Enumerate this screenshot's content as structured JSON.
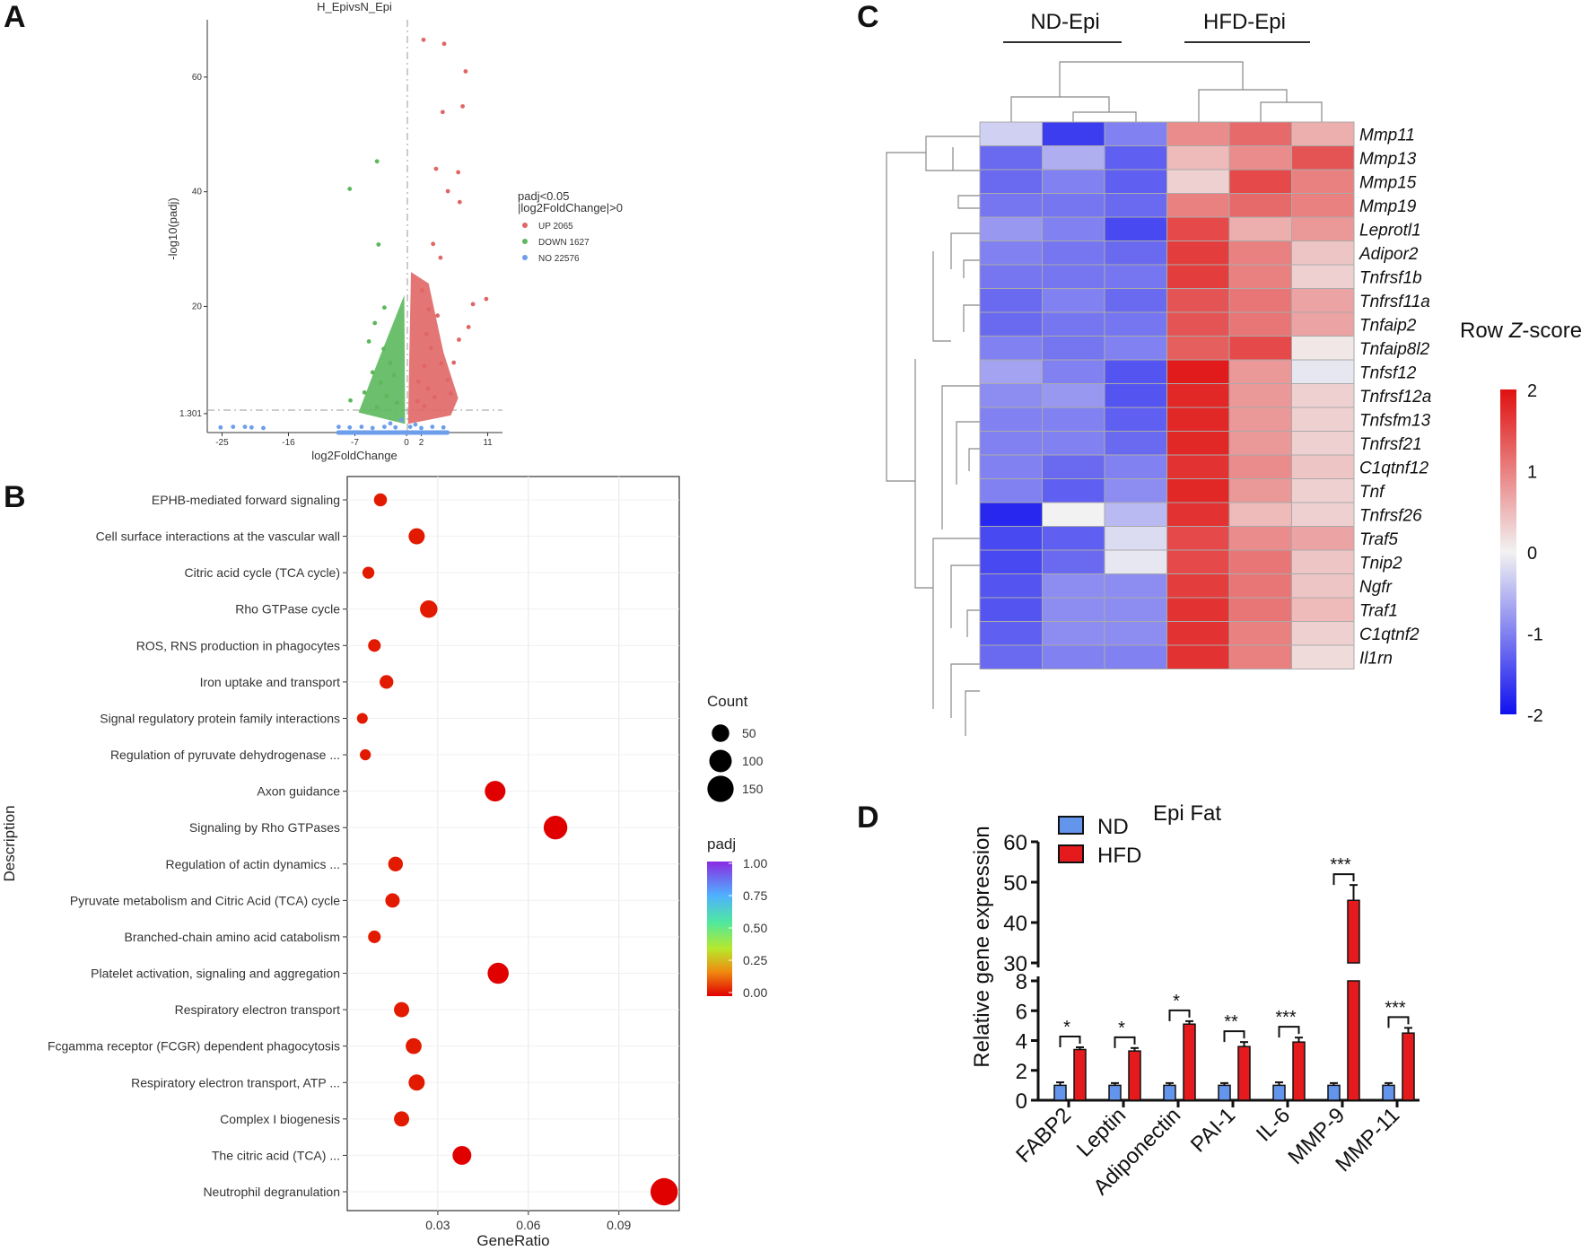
{
  "panels": {
    "a": "A",
    "b": "B",
    "c": "C",
    "d": "D"
  },
  "chart_data": [
    {
      "type": "scatter",
      "panel": "A",
      "title": "H_EpivsN_Epi",
      "xlabel": "log2FoldChange",
      "ylabel": "-log10(padj)",
      "xlim": [
        -27,
        13
      ],
      "ylim": [
        -2,
        70
      ],
      "x_ticks": [
        "-25",
        "-16",
        "-7",
        "0",
        "2",
        "11"
      ],
      "x_tick_values": [
        -25,
        -16,
        -7,
        0,
        2,
        11
      ],
      "y_ticks": [
        "1.301",
        "20",
        "40",
        "60"
      ],
      "y_tick_values": [
        1.301,
        20,
        40,
        60
      ],
      "legend": {
        "title_line1": "padj<0.05",
        "title_line2": "|log2FoldChange|>0",
        "entries": [
          {
            "label": "UP 2065",
            "color": "#e06666"
          },
          {
            "label": "DOWN 1627",
            "color": "#5cb85c"
          },
          {
            "label": "NO 22576",
            "color": "#6d9eeb"
          }
        ]
      },
      "up_points": [
        [
          2.3,
          66.5
        ],
        [
          5.1,
          65.8
        ],
        [
          8.0,
          61.0
        ],
        [
          7.6,
          54.9
        ],
        [
          4.9,
          53.9
        ],
        [
          4.0,
          44.0
        ],
        [
          7.0,
          43.4
        ],
        [
          5.6,
          40.1
        ],
        [
          7.2,
          38.2
        ],
        [
          3.6,
          30.9
        ],
        [
          4.6,
          28.5
        ],
        [
          10.8,
          21.3
        ],
        [
          9.0,
          20.4
        ],
        [
          8.4,
          16.4
        ],
        [
          7.1,
          14.2
        ],
        [
          6.4,
          10.2
        ],
        [
          5.6,
          7.2
        ],
        [
          2.1,
          22.8
        ],
        [
          3.0,
          19.5
        ],
        [
          2.7,
          15.2
        ],
        [
          4.2,
          18.4
        ],
        [
          3.3,
          12.7
        ],
        [
          2.4,
          9.6
        ],
        [
          4.7,
          10.1
        ],
        [
          1.6,
          6.9
        ],
        [
          2.9,
          5.7
        ],
        [
          3.8,
          4.2
        ],
        [
          1.5,
          3.5
        ],
        [
          2.4,
          2.6
        ],
        [
          6.0,
          4.8
        ]
      ],
      "down_points": [
        [
          -4.0,
          45.3
        ],
        [
          -7.7,
          40.5
        ],
        [
          -3.8,
          30.8
        ],
        [
          -3.0,
          19.8
        ],
        [
          -4.3,
          17.1
        ],
        [
          -5.1,
          13.9
        ],
        [
          -3.1,
          12.6
        ],
        [
          -2.2,
          10.1
        ],
        [
          -4.6,
          8.5
        ],
        [
          -1.7,
          8.0
        ],
        [
          -3.5,
          6.7
        ],
        [
          -5.7,
          5.0
        ],
        [
          -2.7,
          4.4
        ],
        [
          -1.3,
          3.2
        ],
        [
          -7.6,
          3.6
        ],
        [
          -4.0,
          2.4
        ]
      ],
      "no_points": [
        [
          -25.2,
          -1.1
        ],
        [
          -23.5,
          -1.0
        ],
        [
          -21.9,
          -1.0
        ],
        [
          -21.0,
          -1.1
        ],
        [
          -19.4,
          -1.2
        ],
        [
          -9.2,
          -1.0
        ],
        [
          -7.7,
          -1.1
        ],
        [
          -6.1,
          -1.0
        ],
        [
          -4.6,
          -1.2
        ],
        [
          -3.0,
          -1.0
        ],
        [
          -1.5,
          -1.1
        ],
        [
          0.5,
          -1.0
        ],
        [
          2.0,
          -1.2
        ],
        [
          3.5,
          -1.0
        ],
        [
          5.0,
          -1.1
        ],
        [
          -2.2,
          -0.4
        ],
        [
          1.2,
          -0.6
        ],
        [
          -0.7,
          0.2
        ]
      ]
    },
    {
      "type": "scatter",
      "panel": "B",
      "xlabel": "GeneRatio",
      "ylabel": "Description",
      "xlim": [
        0.0,
        0.11
      ],
      "x_ticks": [
        "0.03",
        "0.06",
        "0.09"
      ],
      "x_tick_values": [
        0.03,
        0.06,
        0.09
      ],
      "count_legend": {
        "title": "Count",
        "labels": [
          "50",
          "100",
          "150"
        ],
        "values": [
          50,
          100,
          150
        ]
      },
      "padj_legend": {
        "title": "padj",
        "labels": [
          "1.00",
          "0.75",
          "0.50",
          "0.25",
          "0.00"
        ]
      },
      "terms": [
        "EPHB-mediated forward signaling",
        "Cell surface interactions at the vascular wall",
        "Citric acid cycle (TCA cycle)",
        "Rho GTPase cycle",
        "ROS, RNS production in phagocytes",
        "Iron uptake and transport",
        "Signal regulatory protein family interactions",
        "Regulation of pyruvate dehydrogenase ...",
        "Axon guidance",
        "Signaling by Rho GTPases",
        "Regulation of actin dynamics ...",
        "Pyruvate metabolism and Citric Acid (TCA) cycle",
        "Branched-chain amino acid catabolism",
        "Platelet activation, signaling and aggregation",
        "Respiratory electron transport",
        "Fcgamma receptor (FCGR) dependent phagocytosis",
        "Respiratory electron transport, ATP ...",
        "Complex I biogenesis",
        "The citric acid (TCA) ...",
        "Neutrophil degranulation"
      ],
      "gene_ratio": [
        0.011,
        0.023,
        0.007,
        0.027,
        0.009,
        0.013,
        0.005,
        0.006,
        0.049,
        0.069,
        0.016,
        0.015,
        0.009,
        0.05,
        0.018,
        0.022,
        0.023,
        0.018,
        0.038,
        0.105
      ],
      "count": [
        20,
        40,
        15,
        50,
        18,
        24,
        10,
        11,
        80,
        115,
        30,
        28,
        18,
        85,
        33,
        38,
        40,
        33,
        62,
        165
      ],
      "padj": [
        0.01,
        0.01,
        0.01,
        0.01,
        0.01,
        0.01,
        0.01,
        0.01,
        0.0,
        0.0,
        0.01,
        0.01,
        0.01,
        0.0,
        0.01,
        0.01,
        0.01,
        0.01,
        0.0,
        0.0
      ]
    },
    {
      "type": "heatmap",
      "panel": "C",
      "group_labels": [
        "ND-Epi",
        "HFD-Epi"
      ],
      "legend_title_pre": "Row ",
      "legend_title_italic": "Z",
      "legend_title_post": "-score",
      "scale_labels": [
        "2",
        "1",
        "0",
        "-1",
        "-2"
      ],
      "scale_values": [
        2,
        1,
        0,
        -1,
        -2
      ],
      "genes": [
        "Mmp11",
        "Mmp13",
        "Mmp15",
        "Mmp19",
        "Leprotl1",
        "Adipor2",
        "Tnfrsf1b",
        "Tnfrsf11a",
        "Tnfaip2",
        "Tnfaip8l2",
        "Tnfsf12",
        "Tnfrsf12a",
        "Tnfsfm13",
        "Tnfrsf21",
        "C1qtnf12",
        "Tnf",
        "Tnfrsf26",
        "Traf5",
        "Tnip2",
        "Ngfr",
        "Traf1",
        "C1qtnf2",
        "Il1rn"
      ],
      "values": [
        [
          -0.3,
          -1.6,
          -1.0,
          0.9,
          1.2,
          0.6
        ],
        [
          -1.2,
          -0.6,
          -1.3,
          0.5,
          0.9,
          1.4
        ],
        [
          -1.2,
          -1.0,
          -1.3,
          0.3,
          1.5,
          1.0
        ],
        [
          -1.1,
          -1.1,
          -1.2,
          1.0,
          1.2,
          1.0
        ],
        [
          -0.8,
          -1.0,
          -1.5,
          1.5,
          0.6,
          0.8
        ],
        [
          -1.0,
          -1.1,
          -1.2,
          1.6,
          1.0,
          0.4
        ],
        [
          -1.1,
          -1.1,
          -1.1,
          1.6,
          1.0,
          0.3
        ],
        [
          -1.2,
          -1.0,
          -1.2,
          1.4,
          1.1,
          0.7
        ],
        [
          -1.2,
          -1.1,
          -1.1,
          1.4,
          1.1,
          0.7
        ],
        [
          -1.0,
          -1.1,
          -1.0,
          1.3,
          1.5,
          0.1
        ],
        [
          -0.7,
          -1.0,
          -1.4,
          1.9,
          0.8,
          -0.1
        ],
        [
          -0.9,
          -0.8,
          -1.4,
          1.8,
          0.8,
          0.3
        ],
        [
          -1.0,
          -1.0,
          -1.3,
          1.8,
          0.8,
          0.3
        ],
        [
          -1.0,
          -1.0,
          -1.2,
          1.8,
          0.8,
          0.3
        ],
        [
          -1.0,
          -1.2,
          -1.0,
          1.7,
          0.9,
          0.4
        ],
        [
          -1.0,
          -1.3,
          -0.9,
          1.8,
          0.8,
          0.3
        ],
        [
          -1.8,
          0.0,
          -0.5,
          1.7,
          0.5,
          0.3
        ],
        [
          -1.5,
          -1.3,
          -0.2,
          1.5,
          0.9,
          0.7
        ],
        [
          -1.5,
          -1.2,
          -0.1,
          1.5,
          1.1,
          0.4
        ],
        [
          -1.4,
          -0.9,
          -0.9,
          1.6,
          1.1,
          0.4
        ],
        [
          -1.4,
          -0.9,
          -0.9,
          1.7,
          1.1,
          0.5
        ],
        [
          -1.3,
          -0.9,
          -0.9,
          1.7,
          1.0,
          0.3
        ],
        [
          -1.2,
          -1.0,
          -1.0,
          1.7,
          1.0,
          0.2
        ]
      ]
    },
    {
      "type": "bar",
      "panel": "D",
      "title": "Epi Fat",
      "ylabel": "Relative gene expression",
      "categories": [
        "FABP2",
        "Leptin",
        "Adiponectin",
        "PAI-1",
        "IL-6",
        "MMP-9",
        "MMP-11"
      ],
      "series": [
        {
          "name": "ND",
          "color": "#6495ed",
          "values": [
            1.0,
            1.0,
            1.0,
            1.0,
            1.0,
            1.0,
            1.0
          ],
          "errors": [
            0.2,
            0.15,
            0.15,
            0.15,
            0.2,
            0.15,
            0.15
          ]
        },
        {
          "name": "HFD",
          "color": "#e41a1c",
          "values": [
            3.4,
            3.3,
            5.1,
            3.6,
            3.9,
            45.5,
            4.5
          ],
          "errors": [
            0.15,
            0.2,
            0.2,
            0.3,
            0.3,
            3.8,
            0.35
          ]
        }
      ],
      "significance": [
        "*",
        "*",
        "*",
        "**",
        "***",
        "***",
        "***"
      ],
      "y_ticks_lower": [
        "0",
        "2",
        "4",
        "6",
        "8"
      ],
      "y_tick_values_lower": [
        0,
        2,
        4,
        6,
        8
      ],
      "y_ticks_upper": [
        "30",
        "40",
        "50",
        "60"
      ],
      "y_tick_values_upper": [
        30,
        40,
        50,
        60
      ],
      "ylim_lower": [
        0,
        8
      ],
      "ylim_upper": [
        30,
        60
      ]
    }
  ]
}
